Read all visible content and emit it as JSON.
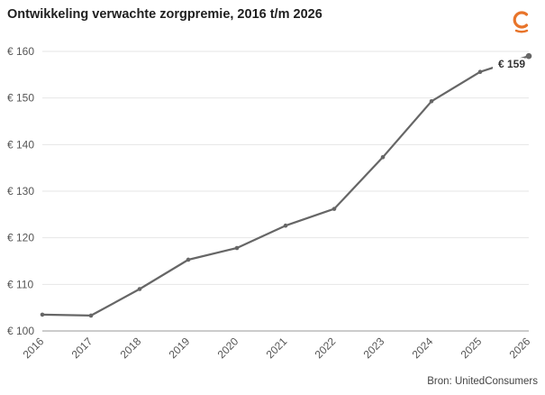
{
  "header": {
    "title": "Ontwikkeling verwachte zorgpremie, 2016 t/m 2026"
  },
  "footer": {
    "source": "Bron: UnitedConsumers"
  },
  "brand": {
    "accent": "#e8742a"
  },
  "chart_data": {
    "type": "line",
    "title": "Ontwikkeling verwachte zorgpremie, 2016 t/m 2026",
    "xlabel": "",
    "ylabel": "",
    "categories": [
      "2016",
      "2017",
      "2018",
      "2019",
      "2020",
      "2021",
      "2022",
      "2023",
      "2024",
      "2025",
      "2026"
    ],
    "series": [
      {
        "values": [
          103.5,
          103.3,
          109.0,
          115.3,
          117.8,
          122.6,
          126.2,
          137.3,
          149.3,
          155.6,
          159.0
        ],
        "color": "#666666"
      }
    ],
    "ylim": [
      100,
      160
    ],
    "yticks": [
      100,
      110,
      120,
      130,
      140,
      150,
      160
    ],
    "ytick_labels": [
      "€ 100",
      "€ 110",
      "€ 120",
      "€ 130",
      "€ 140",
      "€ 150",
      "€ 160"
    ],
    "annotation": "€ 159",
    "grid": true
  }
}
